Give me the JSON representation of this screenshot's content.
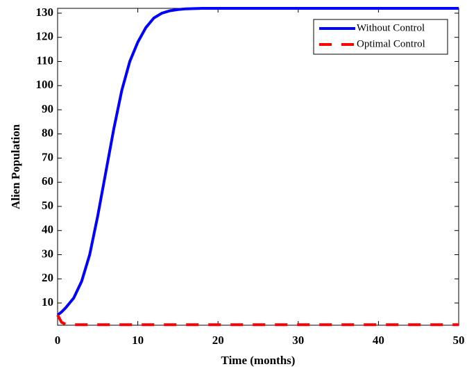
{
  "chart_data": {
    "type": "line",
    "x_label": "Time (months)",
    "y_label": "Alien Population",
    "x": [
      0,
      0.5,
      1,
      2,
      3,
      4,
      5,
      6,
      7,
      8,
      9,
      10,
      11,
      12,
      13,
      14,
      15,
      16,
      18,
      20,
      25,
      30,
      35,
      40,
      45,
      50
    ],
    "series": [
      {
        "name": "Without Control",
        "color": "#0000ff",
        "dashed": false,
        "values": [
          5,
          6.3,
          8,
          12,
          19,
          30,
          46,
          64,
          82,
          98,
          110,
          118,
          124,
          128,
          130,
          131,
          131.5,
          131.8,
          132,
          132,
          132,
          132,
          132,
          132,
          132,
          132
        ]
      },
      {
        "name": "Optimal Control",
        "color": "#ff0000",
        "dashed": true,
        "values": [
          5,
          2,
          1.2,
          1,
          1,
          1,
          1,
          1,
          1,
          1,
          1,
          1,
          1,
          1,
          1,
          1,
          1,
          1,
          1,
          1,
          1,
          1,
          1,
          1,
          1,
          1
        ]
      }
    ],
    "xlim": [
      0,
      50
    ],
    "xticks": [
      0,
      10,
      20,
      30,
      40,
      50
    ],
    "ylim": [
      0.8,
      132
    ],
    "yticks": [
      10,
      20,
      30,
      40,
      50,
      60,
      70,
      80,
      90,
      100,
      110,
      120,
      130
    ],
    "legend": "upper-right"
  }
}
